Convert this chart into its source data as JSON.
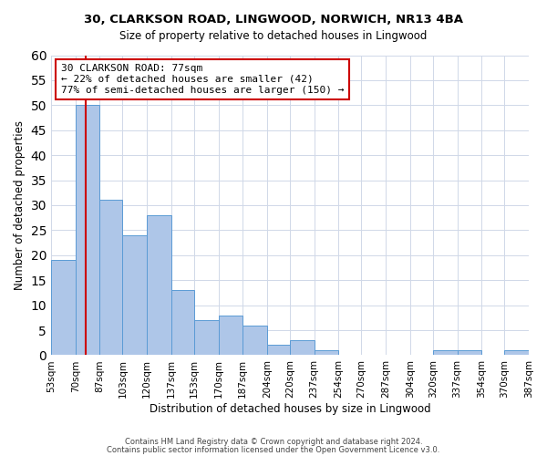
{
  "title1": "30, CLARKSON ROAD, LINGWOOD, NORWICH, NR13 4BA",
  "title2": "Size of property relative to detached houses in Lingwood",
  "xlabel": "Distribution of detached houses by size in Lingwood",
  "ylabel": "Number of detached properties",
  "bin_edges": [
    53,
    70,
    87,
    103,
    120,
    137,
    153,
    170,
    187,
    204,
    220,
    237,
    254,
    270,
    287,
    304,
    320,
    337,
    354,
    370,
    387
  ],
  "bin_labels": [
    "53sqm",
    "70sqm",
    "87sqm",
    "103sqm",
    "120sqm",
    "137sqm",
    "153sqm",
    "170sqm",
    "187sqm",
    "204sqm",
    "220sqm",
    "237sqm",
    "254sqm",
    "270sqm",
    "287sqm",
    "304sqm",
    "320sqm",
    "337sqm",
    "354sqm",
    "370sqm",
    "387sqm"
  ],
  "counts": [
    19,
    50,
    31,
    24,
    28,
    13,
    7,
    8,
    6,
    2,
    3,
    1,
    0,
    0,
    0,
    0,
    1,
    1,
    0,
    1
  ],
  "bar_color": "#aec6e8",
  "bar_edge_color": "#5b9bd5",
  "property_line_x": 77,
  "property_line_color": "#cc0000",
  "ylim": [
    0,
    60
  ],
  "yticks": [
    0,
    5,
    10,
    15,
    20,
    25,
    30,
    35,
    40,
    45,
    50,
    55,
    60
  ],
  "annotation_title": "30 CLARKSON ROAD: 77sqm",
  "annotation_line1": "← 22% of detached houses are smaller (42)",
  "annotation_line2": "77% of semi-detached houses are larger (150) →",
  "annotation_box_color": "#ffffff",
  "annotation_box_edge_color": "#cc0000",
  "footer1": "Contains HM Land Registry data © Crown copyright and database right 2024.",
  "footer2": "Contains public sector information licensed under the Open Government Licence v3.0.",
  "bg_color": "#ffffff",
  "grid_color": "#d0d8e8"
}
